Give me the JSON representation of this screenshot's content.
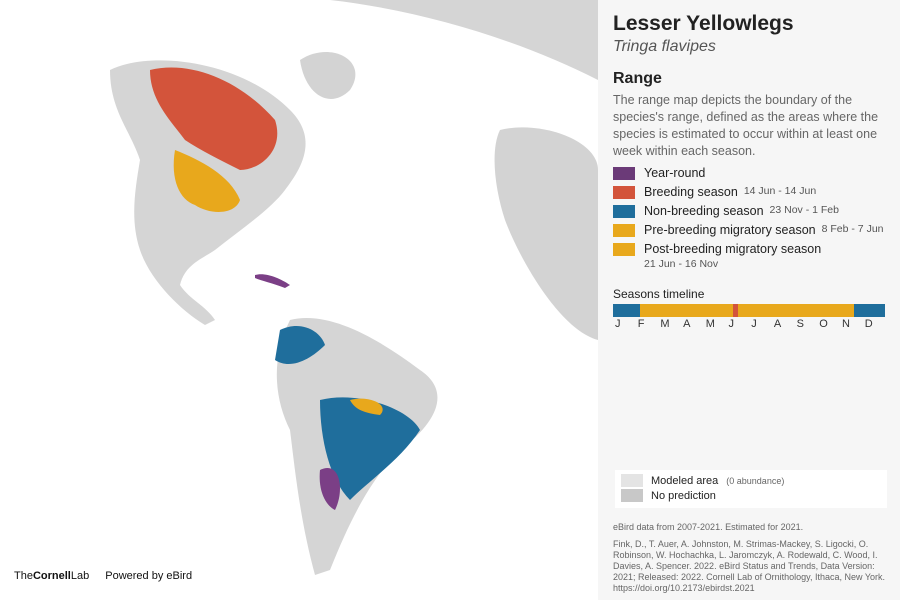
{
  "header": {
    "title": "Lesser Yellowlegs",
    "subtitle": "Tringa flavipes"
  },
  "range": {
    "heading": "Range",
    "description": "The range map depicts the boundary of the species's range, defined as the areas where the species is estimated to occur within at least one week within each season.",
    "legend": [
      {
        "label": "Year-round"
      },
      {
        "label": "Breeding season",
        "dates": "14 Jun - 14 Jun"
      },
      {
        "label": "Non-breeding season",
        "dates": "23 Nov - 1 Feb"
      },
      {
        "label": "Pre-breeding migratory season",
        "dates": "8 Feb - 7 Jun"
      },
      {
        "label": "Post-breeding migratory season",
        "dates": "21 Jun - 16 Nov"
      }
    ]
  },
  "timeline": {
    "heading": "Seasons timeline",
    "months": [
      "J",
      "F",
      "M",
      "A",
      "M",
      "J",
      "J",
      "A",
      "S",
      "O",
      "N",
      "D"
    ]
  },
  "map_legend": [
    {
      "label": "Modeled area",
      "note": "(0 abundance)"
    },
    {
      "label": "No prediction"
    }
  ],
  "footer": {
    "data_note": "eBird data from 2007-2021. Estimated for 2021.",
    "citation": "Fink, D., T. Auer, A. Johnston, M. Strimas-Mackey, S. Ligocki, O. Robinson, W. Hochachka, L. Jaromczyk, A. Rodewald, C. Wood, I. Davies, A. Spencer. 2022. eBird Status and Trends, Data Version: 2021; Released: 2022. Cornell Lab of Ornithology, Ithaca, New York. https://doi.org/10.2173/ebirdst.2021"
  },
  "logos": {
    "cornell_the": "The",
    "cornell_name": "Cornell",
    "cornell_lab": "Lab",
    "powered": "Powered by eBird"
  }
}
